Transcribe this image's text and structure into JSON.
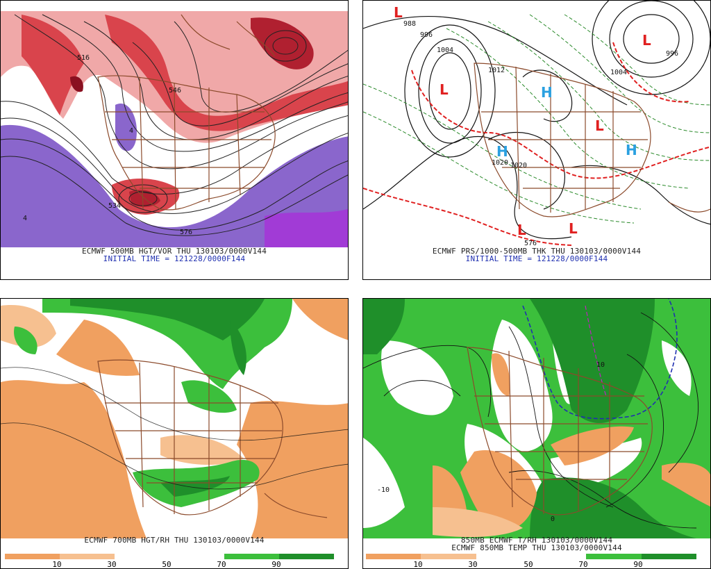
{
  "panels": [
    {
      "id": "p500",
      "line1": "ECMWF 500MB HGT/VOR THU 130103/0000V144",
      "line2": "INITIAL TIME = 121228/0000F144",
      "labels": [
        "4",
        "4",
        "576",
        "546",
        "534",
        "516"
      ]
    },
    {
      "id": "pmsl",
      "line1": "ECMWF PRS/1000-500MB THK THU 130103/0000V144",
      "line2": "INITIAL TIME = 121228/0000F144",
      "isobars": [
        "988",
        "996",
        "1004",
        "1012",
        "1020",
        "1020",
        "996",
        "1004",
        "576"
      ],
      "highs": [
        "H",
        "H",
        "H"
      ],
      "lows": [
        "L",
        "L",
        "L",
        "L",
        "L",
        "L"
      ]
    },
    {
      "id": "p700",
      "line1": "ECMWF 700MB HGT/RH THU 130103/0000V144",
      "scale": [
        "10",
        "30",
        "50",
        "70",
        "90"
      ]
    },
    {
      "id": "p850",
      "line1": "850MB ECMWF T/RH 130103/0000V144",
      "line2": "ECMWF 850MB TEMP THU 130103/0000V144",
      "scale": [
        "10",
        "30",
        "50",
        "70",
        "90"
      ],
      "labels": [
        "-10",
        "10",
        "0"
      ]
    }
  ],
  "colors": {
    "vorticity_red": "#d9444c",
    "vorticity_pink": "#f0a8a8",
    "vorticity_purple": "#8a66cc",
    "rh_green_dark": "#1f8f2a",
    "rh_green": "#3cbf3c",
    "rh_orange": "#f0a060",
    "rh_orange_light": "#f6c090",
    "border_brown": "#8b4a2b",
    "caption_blue": "#1f2fb0",
    "high_blue": "#2aa0e0",
    "low_red": "#e02020"
  }
}
